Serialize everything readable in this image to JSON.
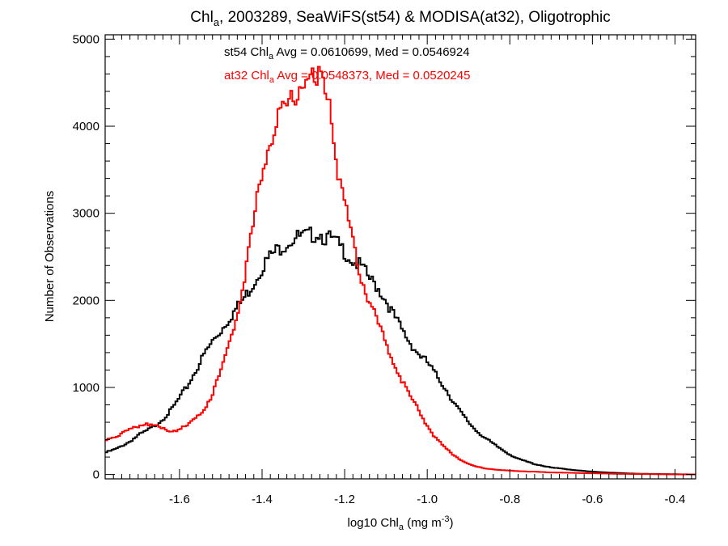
{
  "chart_data": {
    "type": "line",
    "title": {
      "pre": "Chl",
      "sub": "a",
      "post": ", 2003289, SeaWiFS(st54) & MODISA(at32), Oligotrophic"
    },
    "xlabel": {
      "pre": "log10 Chl",
      "sub": "a",
      "mid": " (mg m",
      "sup": "-3",
      "post": ")"
    },
    "ylabel": "Number of Observations",
    "xlim": [
      -1.78,
      -0.35
    ],
    "ylim": [
      -50,
      5050
    ],
    "xticks": [
      -1.6,
      -1.4,
      -1.2,
      -1.0,
      -0.8,
      -0.6,
      -0.4
    ],
    "xtick_labels": [
      "-1.6",
      "-1.4",
      "-1.2",
      "-1.0",
      "-0.8",
      "-0.6",
      "-0.4"
    ],
    "yticks": [
      0,
      1000,
      2000,
      3000,
      4000,
      5000
    ],
    "ytick_labels": [
      "0",
      "1000",
      "2000",
      "3000",
      "4000",
      "5000"
    ],
    "grid": false,
    "annotations": [
      {
        "pre": "st54 Chl",
        "sub": "a",
        "post": " Avg = 0.0610699, Med = 0.0546924",
        "color": "#000000"
      },
      {
        "pre": "at32 Chl",
        "sub": "a",
        "post": " Avg = 0.0548373, Med = 0.0520245",
        "color": "#ff0000"
      }
    ],
    "series": [
      {
        "color": "#000000",
        "x": [
          -1.78,
          -1.75,
          -1.72,
          -1.7,
          -1.68,
          -1.66,
          -1.64,
          -1.62,
          -1.6,
          -1.58,
          -1.56,
          -1.54,
          -1.52,
          -1.5,
          -1.48,
          -1.46,
          -1.44,
          -1.42,
          -1.4,
          -1.38,
          -1.36,
          -1.34,
          -1.32,
          -1.3,
          -1.28,
          -1.26,
          -1.25,
          -1.24,
          -1.22,
          -1.2,
          -1.18,
          -1.16,
          -1.14,
          -1.12,
          -1.1,
          -1.08,
          -1.06,
          -1.04,
          -1.02,
          -1.0,
          -0.98,
          -0.96,
          -0.94,
          -0.92,
          -0.9,
          -0.88,
          -0.86,
          -0.84,
          -0.82,
          -0.8,
          -0.78,
          -0.76,
          -0.74,
          -0.72,
          -0.7,
          -0.68,
          -0.66,
          -0.64,
          -0.62,
          -0.6,
          -0.58,
          -0.56,
          -0.54,
          -0.52,
          -0.5,
          -0.45,
          -0.4,
          -0.35
        ],
        "y": [
          250,
          300,
          380,
          450,
          500,
          560,
          640,
          740,
          880,
          1020,
          1200,
          1380,
          1530,
          1650,
          1790,
          1920,
          2050,
          2200,
          2380,
          2510,
          2590,
          2660,
          2720,
          2730,
          2750,
          2780,
          2720,
          2720,
          2660,
          2560,
          2450,
          2390,
          2250,
          2150,
          2000,
          1820,
          1650,
          1500,
          1380,
          1290,
          1150,
          1020,
          860,
          720,
          600,
          500,
          420,
          350,
          290,
          230,
          180,
          150,
          120,
          100,
          80,
          70,
          60,
          50,
          40,
          32,
          28,
          22,
          18,
          14,
          10,
          6,
          3,
          1
        ]
      },
      {
        "color": "#ff0000",
        "x": [
          -1.78,
          -1.75,
          -1.72,
          -1.7,
          -1.68,
          -1.66,
          -1.64,
          -1.62,
          -1.6,
          -1.58,
          -1.56,
          -1.54,
          -1.52,
          -1.5,
          -1.48,
          -1.46,
          -1.44,
          -1.42,
          -1.4,
          -1.38,
          -1.36,
          -1.34,
          -1.32,
          -1.3,
          -1.29,
          -1.28,
          -1.27,
          -1.26,
          -1.25,
          -1.24,
          -1.22,
          -1.2,
          -1.18,
          -1.16,
          -1.14,
          -1.12,
          -1.1,
          -1.08,
          -1.06,
          -1.04,
          -1.02,
          -1.0,
          -0.98,
          -0.96,
          -0.94,
          -0.92,
          -0.9,
          -0.88,
          -0.86,
          -0.84,
          -0.82,
          -0.8,
          -0.78,
          -0.76,
          -0.74,
          -0.72,
          -0.7,
          -0.68,
          -0.66,
          -0.64,
          -0.62,
          -0.6,
          -0.58,
          -0.56,
          -0.54,
          -0.52,
          -0.5,
          -0.45,
          -0.4,
          -0.35
        ],
        "y": [
          400,
          450,
          510,
          560,
          590,
          560,
          520,
          500,
          520,
          560,
          640,
          760,
          920,
          1180,
          1500,
          1880,
          2330,
          2900,
          3480,
          3860,
          4080,
          4230,
          4380,
          4520,
          4600,
          4550,
          4420,
          4600,
          4500,
          4450,
          3600,
          3100,
          2650,
          2280,
          1990,
          1750,
          1500,
          1280,
          1060,
          880,
          730,
          560,
          420,
          320,
          240,
          170,
          120,
          90,
          70,
          60,
          50,
          45,
          40,
          35,
          32,
          28,
          24,
          22,
          20,
          18,
          16,
          14,
          12,
          10,
          8,
          7,
          6,
          4,
          2,
          1
        ]
      }
    ]
  }
}
